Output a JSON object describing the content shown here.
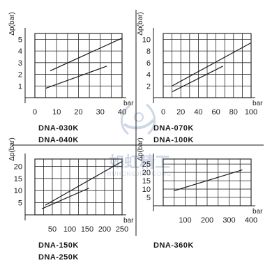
{
  "watermark": {
    "text": "如虹精工",
    "subtext": "RUHONGJINGGONG",
    "color": "#c9d3e3"
  },
  "colors": {
    "grid": "#2b2b2b",
    "line": "#1a1a1a",
    "text": "#1a1a1a"
  },
  "chart_data": [
    {
      "type": "line",
      "ylabel": "Δp(bar)",
      "xlabel": "bar",
      "xticks": [
        "0",
        "10",
        "20",
        "30",
        "40"
      ],
      "yticks": [
        "1",
        "2",
        "3",
        "4",
        "5"
      ],
      "xlim": [
        0,
        40
      ],
      "ylim": [
        0,
        5.5
      ],
      "grid": true,
      "models": [
        "DNA-030K",
        "DNA-040K"
      ],
      "series": [
        {
          "x": [
            7,
            40
          ],
          "y": [
            2.3,
            5.1
          ]
        },
        {
          "x": [
            5,
            33
          ],
          "y": [
            0.8,
            2.7
          ]
        }
      ]
    },
    {
      "type": "line",
      "ylabel": "Δp(bar)",
      "xlabel": "bar",
      "xticks": [
        "0",
        "20",
        "40",
        "60",
        "80",
        "100"
      ],
      "yticks": [
        "2",
        "4",
        "6",
        "8",
        "10"
      ],
      "xlim": [
        0,
        100
      ],
      "ylim": [
        0,
        11
      ],
      "grid": true,
      "models": [
        "DNA-070K",
        "DNA-100K"
      ],
      "series": [
        {
          "x": [
            10,
            100
          ],
          "y": [
            2.0,
            9.4
          ]
        },
        {
          "x": [
            10,
            68
          ],
          "y": [
            1.0,
            5.4
          ]
        }
      ]
    },
    {
      "type": "line",
      "ylabel": "Δp(bar)",
      "xlabel": "bar",
      "xticks": [
        "50",
        "100",
        "150",
        "200",
        "250"
      ],
      "yticks": [
        "5",
        "10",
        "15",
        "20"
      ],
      "xlim": [
        0,
        250
      ],
      "ylim": [
        0,
        23
      ],
      "grid": true,
      "models": [
        "DNA-150K",
        "DNA-250K"
      ],
      "series": [
        {
          "x": [
            30,
            250
          ],
          "y": [
            4.0,
            22.0
          ]
        },
        {
          "x": [
            20,
            155
          ],
          "y": [
            2.5,
            11.0
          ]
        }
      ]
    },
    {
      "type": "line",
      "ylabel": "Δp(bar)",
      "xlabel": "bar",
      "xticks": [
        "100",
        "200",
        "300",
        "400"
      ],
      "yticks": [
        "5",
        "10",
        "15",
        "20",
        "25"
      ],
      "xlim": [
        0,
        400
      ],
      "ylim": [
        0,
        28
      ],
      "grid": true,
      "models": [
        "DNA-360K"
      ],
      "series": [
        {
          "x": [
            50,
            360
          ],
          "y": [
            9.0,
            21.5
          ]
        }
      ]
    }
  ]
}
